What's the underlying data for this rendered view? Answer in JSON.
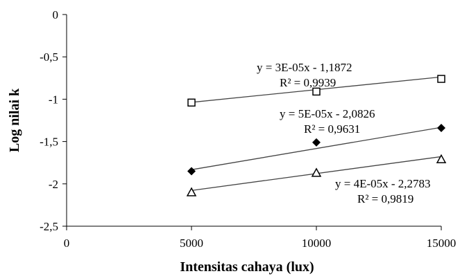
{
  "chart_data": {
    "type": "scatter",
    "title": "",
    "xlabel": "Intensitas cahaya (lux)",
    "ylabel": "Log nilai k",
    "xlim": [
      0,
      15000
    ],
    "ylim": [
      -2.5,
      0
    ],
    "x_ticks": [
      "0",
      "5000",
      "10000",
      "15000"
    ],
    "y_ticks": [
      "0",
      "-0,5",
      "-1",
      "-1,5",
      "-2",
      "-2,5"
    ],
    "grid": false,
    "legend": "none",
    "series": [
      {
        "marker": "open-square",
        "x": [
          5000,
          10000,
          15000
        ],
        "y": [
          -1.04,
          -0.91,
          -0.76
        ],
        "trendline": {
          "slope": 3e-05,
          "intercept": -1.1872
        },
        "equation": "y = 3E-05x - 1,1872",
        "r2": "R² = 0,9939"
      },
      {
        "marker": "filled-diamond",
        "x": [
          5000,
          10000,
          15000
        ],
        "y": [
          -1.85,
          -1.51,
          -1.34
        ],
        "trendline": {
          "slope": 5e-05,
          "intercept": -2.0826
        },
        "equation": "y = 5E-05x - 2,0826",
        "r2": "R² = 0,9631"
      },
      {
        "marker": "open-triangle",
        "x": [
          5000,
          10000,
          15000
        ],
        "y": [
          -2.1,
          -1.87,
          -1.71
        ],
        "trendline": {
          "slope": 4e-05,
          "intercept": -2.2783
        },
        "equation": "y = 4E-05x - 2,2783",
        "r2": "R² = 0,9819"
      }
    ]
  }
}
